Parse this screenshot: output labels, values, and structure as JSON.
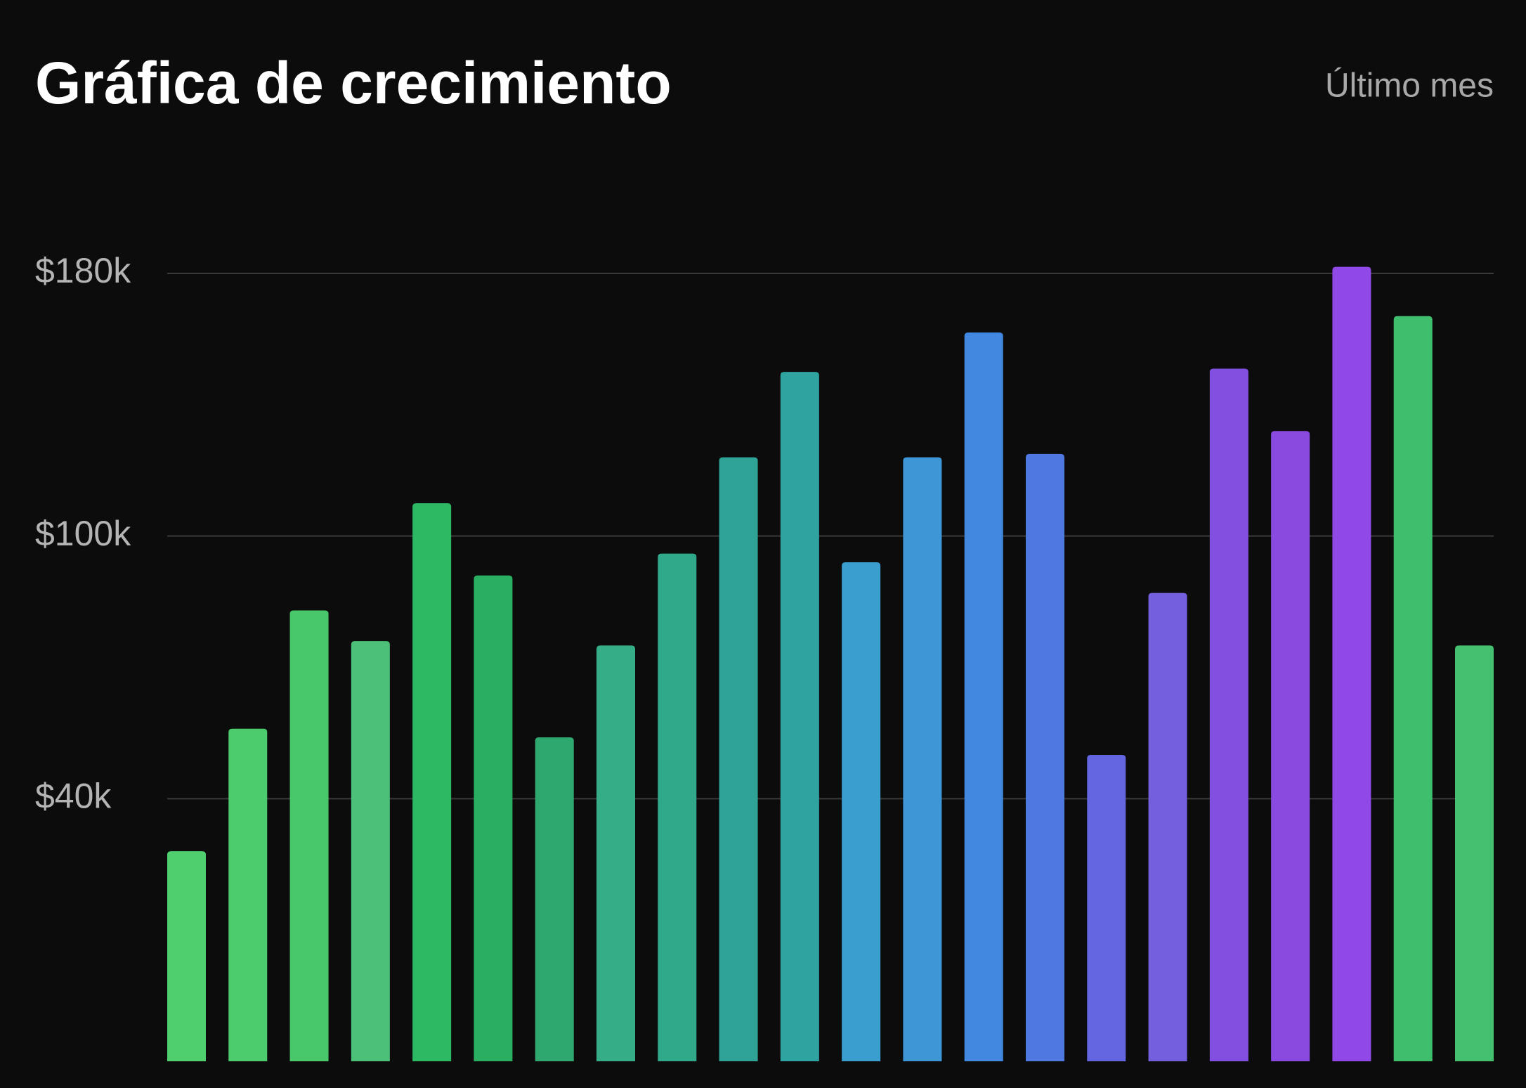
{
  "chart_data": {
    "type": "bar",
    "title": "Gráfica de crecimiento",
    "subtitle": "Último mes",
    "values": [
      32000,
      56000,
      83000,
      76000,
      110000,
      91000,
      54000,
      75000,
      96000,
      124000,
      150000,
      94000,
      124000,
      162000,
      125000,
      50000,
      87000,
      151000,
      132000,
      182000,
      167000,
      75000
    ],
    "colors": [
      "#4fcf6e",
      "#4ccc6c",
      "#48c86a",
      "#4cbf78",
      "#2db864",
      "#2aae62",
      "#2fa86f",
      "#35ad86",
      "#30a88a",
      "#2ea396",
      "#2ea3a0",
      "#3a9fcf",
      "#3e96d6",
      "#4287e0",
      "#4f78e0",
      "#6366e0",
      "#7460de",
      "#8150e0",
      "#8a4ae0",
      "#9048e6",
      "#3fbf6e",
      "#45c070"
    ],
    "ylim": [
      0,
      180000
    ],
    "yticks": [
      {
        "value": 40000,
        "label": "$40k"
      },
      {
        "value": 100000,
        "label": "$100k"
      },
      {
        "value": 180000,
        "label": "$180k"
      }
    ],
    "grid": true
  }
}
